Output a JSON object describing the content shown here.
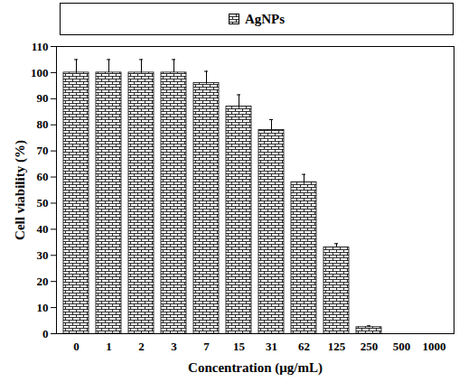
{
  "chart_data": {
    "type": "bar",
    "x_label": "Concentration (μg/mL)",
    "y_label": "Cell viability (%)",
    "categories": [
      "0",
      "1",
      "2",
      "3",
      "7",
      "15",
      "31",
      "62",
      "125",
      "250",
      "500",
      "1000"
    ],
    "series": [
      {
        "name": "AgNPs",
        "color": "#000000",
        "values": [
          100,
          100,
          100,
          100,
          96,
          87,
          78,
          58,
          33,
          2.5,
          0,
          0
        ],
        "error": [
          5,
          5,
          5,
          5,
          4.5,
          4.5,
          4,
          3,
          1.5,
          0.5,
          0,
          0
        ]
      }
    ],
    "ylim": [
      0,
      110
    ],
    "yticks": [
      0,
      10,
      20,
      30,
      40,
      50,
      60,
      70,
      80,
      90,
      100,
      110
    ],
    "grid": false,
    "legend": "top"
  }
}
